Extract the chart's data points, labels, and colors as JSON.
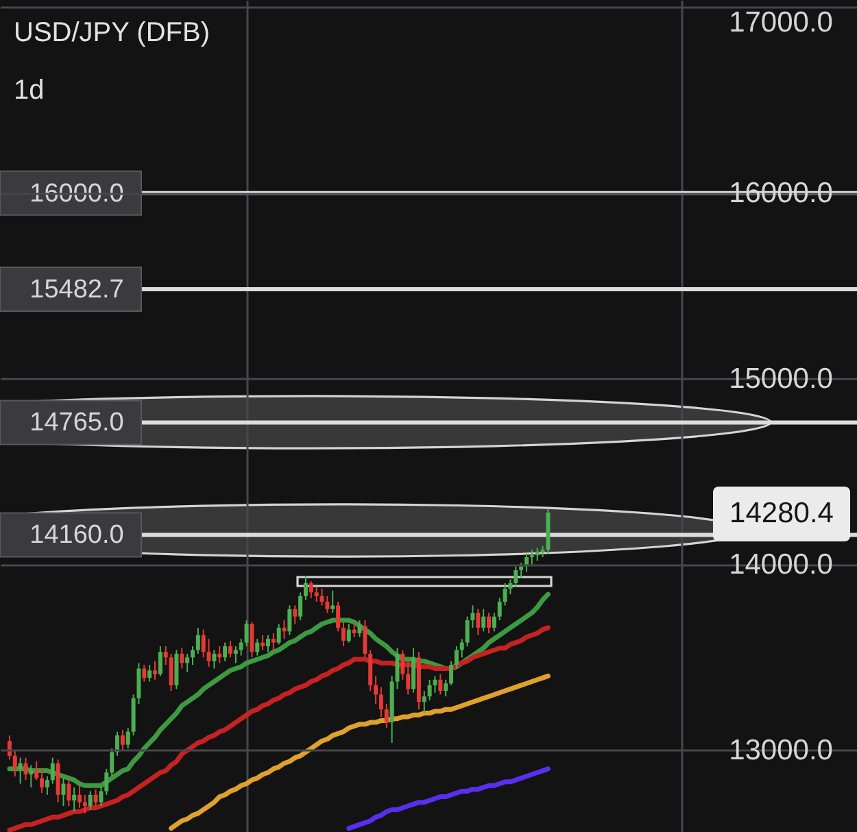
{
  "chart_data": {
    "type": "candlestick",
    "title": "USD/JPY (DFB)",
    "subtitle": "1d",
    "categories": [
      null,
      null,
      null,
      null,
      null,
      null,
      null,
      null,
      null,
      null,
      null,
      null,
      null,
      null,
      null,
      null,
      null,
      null,
      null,
      null,
      null,
      null,
      null,
      null,
      null,
      null,
      null,
      null,
      null,
      null,
      null,
      null,
      null,
      null,
      null,
      null,
      null,
      null,
      null,
      null,
      null,
      null,
      null,
      null,
      null,
      null,
      null,
      null,
      null,
      null,
      null,
      null,
      null,
      null,
      null,
      null,
      null,
      null,
      null,
      null,
      null,
      null,
      null,
      null,
      null,
      null,
      null,
      null,
      null,
      null,
      null,
      null,
      null,
      null,
      null,
      null,
      null,
      null,
      null,
      null,
      null,
      null,
      null,
      null,
      null,
      null,
      null,
      null,
      null,
      null,
      null,
      null,
      null,
      null,
      null,
      null,
      null,
      null,
      null,
      null,
      null
    ],
    "ohlc": [
      [
        13050,
        13080,
        12950,
        12970
      ],
      [
        12970,
        13000,
        12860,
        12900
      ],
      [
        12900,
        12960,
        12820,
        12930
      ],
      [
        12930,
        12960,
        12840,
        12870
      ],
      [
        12870,
        12920,
        12800,
        12890
      ],
      [
        12890,
        12940,
        12840,
        12850
      ],
      [
        12850,
        12900,
        12770,
        12800
      ],
      [
        12800,
        12860,
        12760,
        12840
      ],
      [
        12840,
        12960,
        12820,
        12930
      ],
      [
        12930,
        12950,
        12720,
        12760
      ],
      [
        12760,
        12850,
        12700,
        12820
      ],
      [
        12820,
        12840,
        12700,
        12730
      ],
      [
        12730,
        12800,
        12670,
        12760
      ],
      [
        12760,
        12810,
        12690,
        12720
      ],
      [
        12720,
        12760,
        12660,
        12700
      ],
      [
        12700,
        12780,
        12680,
        12760
      ],
      [
        12760,
        12790,
        12700,
        12720
      ],
      [
        12720,
        12800,
        12700,
        12780
      ],
      [
        12780,
        12900,
        12760,
        12880
      ],
      [
        12880,
        13010,
        12860,
        12990
      ],
      [
        12990,
        13100,
        12970,
        13080
      ],
      [
        13080,
        13110,
        13000,
        13030
      ],
      [
        13030,
        13120,
        13010,
        13100
      ],
      [
        13100,
        13300,
        13080,
        13280
      ],
      [
        13280,
        13470,
        13250,
        13440
      ],
      [
        13440,
        13460,
        13370,
        13390
      ],
      [
        13390,
        13460,
        13370,
        13430
      ],
      [
        13430,
        13480,
        13380,
        13410
      ],
      [
        13410,
        13560,
        13400,
        13530
      ],
      [
        13530,
        13560,
        13460,
        13500
      ],
      [
        13500,
        13520,
        13320,
        13350
      ],
      [
        13350,
        13540,
        13330,
        13520
      ],
      [
        13520,
        13550,
        13440,
        13470
      ],
      [
        13470,
        13520,
        13420,
        13500
      ],
      [
        13500,
        13560,
        13460,
        13540
      ],
      [
        13540,
        13660,
        13520,
        13620
      ],
      [
        13620,
        13650,
        13500,
        13530
      ],
      [
        13530,
        13600,
        13450,
        13480
      ],
      [
        13480,
        13540,
        13440,
        13520
      ],
      [
        13520,
        13560,
        13470,
        13500
      ],
      [
        13500,
        13580,
        13480,
        13560
      ],
      [
        13560,
        13590,
        13500,
        13520
      ],
      [
        13520,
        13560,
        13470,
        13540
      ],
      [
        13540,
        13600,
        13510,
        13580
      ],
      [
        13580,
        13700,
        13560,
        13680
      ],
      [
        13680,
        13690,
        13500,
        13530
      ],
      [
        13530,
        13600,
        13510,
        13580
      ],
      [
        13580,
        13620,
        13540,
        13560
      ],
      [
        13560,
        13620,
        13530,
        13600
      ],
      [
        13600,
        13630,
        13540,
        13580
      ],
      [
        13580,
        13680,
        13570,
        13660
      ],
      [
        13660,
        13700,
        13600,
        13640
      ],
      [
        13640,
        13780,
        13620,
        13760
      ],
      [
        13760,
        13780,
        13680,
        13720
      ],
      [
        13720,
        13850,
        13700,
        13830
      ],
      [
        13830,
        13940,
        13810,
        13900
      ],
      [
        13900,
        13910,
        13820,
        13850
      ],
      [
        13850,
        13880,
        13800,
        13830
      ],
      [
        13830,
        13870,
        13780,
        13800
      ],
      [
        13800,
        13830,
        13740,
        13760
      ],
      [
        13760,
        13860,
        13740,
        13780
      ],
      [
        13780,
        13800,
        13640,
        13660
      ],
      [
        13660,
        13690,
        13560,
        13590
      ],
      [
        13590,
        13680,
        13580,
        13650
      ],
      [
        13650,
        13690,
        13610,
        13630
      ],
      [
        13630,
        13700,
        13610,
        13670
      ],
      [
        13670,
        13700,
        13500,
        13520
      ],
      [
        13520,
        13540,
        13320,
        13350
      ],
      [
        13350,
        13400,
        13250,
        13300
      ],
      [
        13300,
        13340,
        13180,
        13220
      ],
      [
        13220,
        13250,
        13120,
        13150
      ],
      [
        13150,
        13400,
        13040,
        13370
      ],
      [
        13370,
        13550,
        13330,
        13520
      ],
      [
        13520,
        13540,
        13380,
        13410
      ],
      [
        13410,
        13480,
        13300,
        13330
      ],
      [
        13330,
        13550,
        13310,
        13500
      ],
      [
        13500,
        13530,
        13220,
        13260
      ],
      [
        13260,
        13320,
        13200,
        13290
      ],
      [
        13290,
        13380,
        13270,
        13350
      ],
      [
        13350,
        13400,
        13310,
        13380
      ],
      [
        13380,
        13410,
        13300,
        13320
      ],
      [
        13320,
        13380,
        13290,
        13360
      ],
      [
        13360,
        13480,
        13350,
        13460
      ],
      [
        13460,
        13560,
        13440,
        13540
      ],
      [
        13540,
        13600,
        13500,
        13580
      ],
      [
        13580,
        13720,
        13560,
        13700
      ],
      [
        13700,
        13780,
        13660,
        13740
      ],
      [
        13740,
        13760,
        13620,
        13660
      ],
      [
        13660,
        13760,
        13640,
        13720
      ],
      [
        13720,
        13740,
        13630,
        13660
      ],
      [
        13660,
        13740,
        13640,
        13720
      ],
      [
        13720,
        13820,
        13700,
        13800
      ],
      [
        13800,
        13900,
        13780,
        13870
      ],
      [
        13870,
        13920,
        13840,
        13900
      ],
      [
        13900,
        13990,
        13880,
        13970
      ],
      [
        13970,
        14010,
        13930,
        13990
      ],
      [
        13990,
        14060,
        13960,
        14040
      ],
      [
        14040,
        14080,
        14000,
        14050
      ],
      [
        14050,
        14090,
        14020,
        14070
      ],
      [
        14070,
        14100,
        14040,
        14080
      ],
      [
        14080,
        14300,
        14060,
        14280.4
      ]
    ],
    "colors": [
      "#e53935",
      "#e53935",
      "#4caf50",
      "#e53935",
      "#4caf50",
      "#e53935",
      "#e53935",
      "#4caf50",
      "#4caf50",
      "#e53935",
      "#4caf50",
      "#e53935",
      "#4caf50",
      "#e53935",
      "#e53935",
      "#4caf50",
      "#e53935",
      "#4caf50",
      "#4caf50",
      "#4caf50",
      "#4caf50",
      "#e53935",
      "#4caf50",
      "#4caf50",
      "#4caf50",
      "#e53935",
      "#4caf50",
      "#e53935",
      "#4caf50",
      "#e53935",
      "#e53935",
      "#4caf50",
      "#e53935",
      "#4caf50",
      "#4caf50",
      "#4caf50",
      "#e53935",
      "#e53935",
      "#4caf50",
      "#e53935",
      "#4caf50",
      "#e53935",
      "#4caf50",
      "#4caf50",
      "#4caf50",
      "#e53935",
      "#4caf50",
      "#e53935",
      "#4caf50",
      "#e53935",
      "#4caf50",
      "#e53935",
      "#4caf50",
      "#e53935",
      "#4caf50",
      "#4caf50",
      "#e53935",
      "#e53935",
      "#e53935",
      "#e53935",
      "#4caf50",
      "#e53935",
      "#e53935",
      "#4caf50",
      "#e53935",
      "#4caf50",
      "#e53935",
      "#e53935",
      "#e53935",
      "#e53935",
      "#e53935",
      "#4caf50",
      "#4caf50",
      "#e53935",
      "#e53935",
      "#4caf50",
      "#e53935",
      "#4caf50",
      "#4caf50",
      "#4caf50",
      "#e53935",
      "#4caf50",
      "#4caf50",
      "#4caf50",
      "#4caf50",
      "#4caf50",
      "#4caf50",
      "#e53935",
      "#4caf50",
      "#e53935",
      "#4caf50",
      "#4caf50",
      "#4caf50",
      "#4caf50",
      "#4caf50",
      "#4caf50",
      "#4caf50",
      "#4caf50",
      "#4caf50",
      "#4caf50",
      "#4caf50"
    ],
    "series": [
      {
        "type": "line",
        "color": "#3d9a40",
        "values": [
          12900,
          12900,
          12900,
          12900,
          12890,
          12890,
          12890,
          12890,
          12880,
          12870,
          12860,
          12850,
          12840,
          12820,
          12810,
          12810,
          12810,
          12810,
          12830,
          12850,
          12870,
          12890,
          12900,
          12940,
          12970,
          13010,
          13040,
          13070,
          13110,
          13140,
          13170,
          13200,
          13240,
          13260,
          13280,
          13300,
          13330,
          13350,
          13370,
          13390,
          13410,
          13430,
          13440,
          13450,
          13470,
          13480,
          13490,
          13500,
          13510,
          13530,
          13540,
          13560,
          13580,
          13590,
          13610,
          13630,
          13640,
          13660,
          13680,
          13690,
          13700,
          13700,
          13700,
          13700,
          13690,
          13670,
          13650,
          13630,
          13600,
          13580,
          13560,
          13530,
          13510,
          13490,
          13490,
          13490,
          13480,
          13480,
          13470,
          13460,
          13450,
          13440,
          13440,
          13450,
          13470,
          13490,
          13510,
          13530,
          13550,
          13580,
          13600,
          13620,
          13640,
          13660,
          13680,
          13700,
          13720,
          13740,
          13770,
          13810,
          13840
        ]
      },
      {
        "type": "line",
        "color": "#c62222",
        "values": [
          12570,
          12580,
          12590,
          12600,
          12600,
          12610,
          12620,
          12630,
          12640,
          12640,
          12650,
          12660,
          12670,
          12670,
          12680,
          12690,
          12690,
          12700,
          12710,
          12720,
          12730,
          12750,
          12760,
          12780,
          12800,
          12820,
          12840,
          12860,
          12880,
          12890,
          12920,
          12940,
          12980,
          13000,
          13020,
          13040,
          13050,
          13070,
          13080,
          13100,
          13110,
          13130,
          13150,
          13170,
          13190,
          13210,
          13220,
          13240,
          13250,
          13270,
          13280,
          13300,
          13310,
          13330,
          13340,
          13350,
          13370,
          13380,
          13400,
          13410,
          13430,
          13440,
          13460,
          13470,
          13490,
          13490,
          13490,
          13480,
          13480,
          13470,
          13470,
          13470,
          13460,
          13460,
          13460,
          13460,
          13450,
          13450,
          13450,
          13440,
          13440,
          13440,
          13440,
          13460,
          13470,
          13480,
          13500,
          13510,
          13520,
          13530,
          13540,
          13550,
          13550,
          13570,
          13580,
          13590,
          13610,
          13620,
          13630,
          13650,
          13660
        ]
      },
      {
        "type": "line",
        "color": "#e0a02c",
        "values": [
          null,
          null,
          null,
          null,
          null,
          null,
          null,
          null,
          null,
          null,
          null,
          null,
          null,
          null,
          null,
          null,
          null,
          null,
          null,
          null,
          null,
          null,
          null,
          null,
          null,
          null,
          null,
          null,
          null,
          null,
          12580,
          12600,
          12620,
          12630,
          12650,
          12660,
          12680,
          12700,
          12720,
          12750,
          12760,
          12780,
          12790,
          12810,
          12820,
          12840,
          12850,
          12870,
          12880,
          12900,
          12910,
          12930,
          12940,
          12960,
          12970,
          12990,
          13010,
          13030,
          13050,
          13060,
          13080,
          13090,
          13100,
          13120,
          13130,
          13140,
          13140,
          13150,
          13150,
          13160,
          13160,
          13170,
          13170,
          13180,
          13180,
          13190,
          13190,
          13200,
          13200,
          13210,
          13210,
          13220,
          13220,
          13230,
          13240,
          13250,
          13260,
          13270,
          13280,
          13290,
          13300,
          13310,
          13320,
          13330,
          13340,
          13350,
          13360,
          13370,
          13380,
          13390,
          13400
        ]
      },
      {
        "type": "line",
        "color": "#5a2ef0",
        "values": [
          null,
          null,
          null,
          null,
          null,
          null,
          null,
          null,
          null,
          null,
          null,
          null,
          null,
          null,
          null,
          null,
          null,
          null,
          null,
          null,
          null,
          null,
          null,
          null,
          null,
          null,
          null,
          null,
          null,
          null,
          null,
          null,
          null,
          null,
          null,
          null,
          null,
          null,
          null,
          null,
          null,
          null,
          null,
          null,
          null,
          null,
          null,
          null,
          null,
          null,
          null,
          null,
          null,
          null,
          null,
          null,
          null,
          null,
          null,
          null,
          null,
          null,
          null,
          12580,
          12590,
          12600,
          12610,
          12620,
          12640,
          12650,
          12670,
          12680,
          12680,
          12690,
          12700,
          12710,
          12720,
          12720,
          12730,
          12740,
          12750,
          12750,
          12760,
          12770,
          12780,
          12780,
          12790,
          12790,
          12800,
          12810,
          12810,
          12820,
          12830,
          12830,
          12840,
          12850,
          12860,
          12870,
          12880,
          12890,
          12900
        ]
      }
    ],
    "ylim": [
      12560,
      17040
    ],
    "yticks": [
      {
        "value": 13000,
        "label": "13000.0"
      },
      {
        "value": 14000,
        "label": "14000.0"
      },
      {
        "value": 15000,
        "label": "15000.0"
      },
      {
        "value": 16000,
        "label": "16000.0"
      },
      {
        "value": 17000,
        "label": "17000.0"
      }
    ],
    "grid": true,
    "tick_labels": "y",
    "ref_lines": [
      {
        "axis": "y",
        "value": 16000,
        "label": "16000.0",
        "color": "#dcdcdc"
      },
      {
        "axis": "y",
        "value": 15482.7,
        "label": "15482.7",
        "color": "#dcdcdc"
      },
      {
        "axis": "y",
        "value": 14765,
        "label": "14765.0",
        "color": "#dcdcdc"
      },
      {
        "axis": "y",
        "value": 14160,
        "label": "14160.0",
        "color": "#dcdcdc"
      }
    ],
    "annotations": [
      "14280.4"
    ]
  }
}
